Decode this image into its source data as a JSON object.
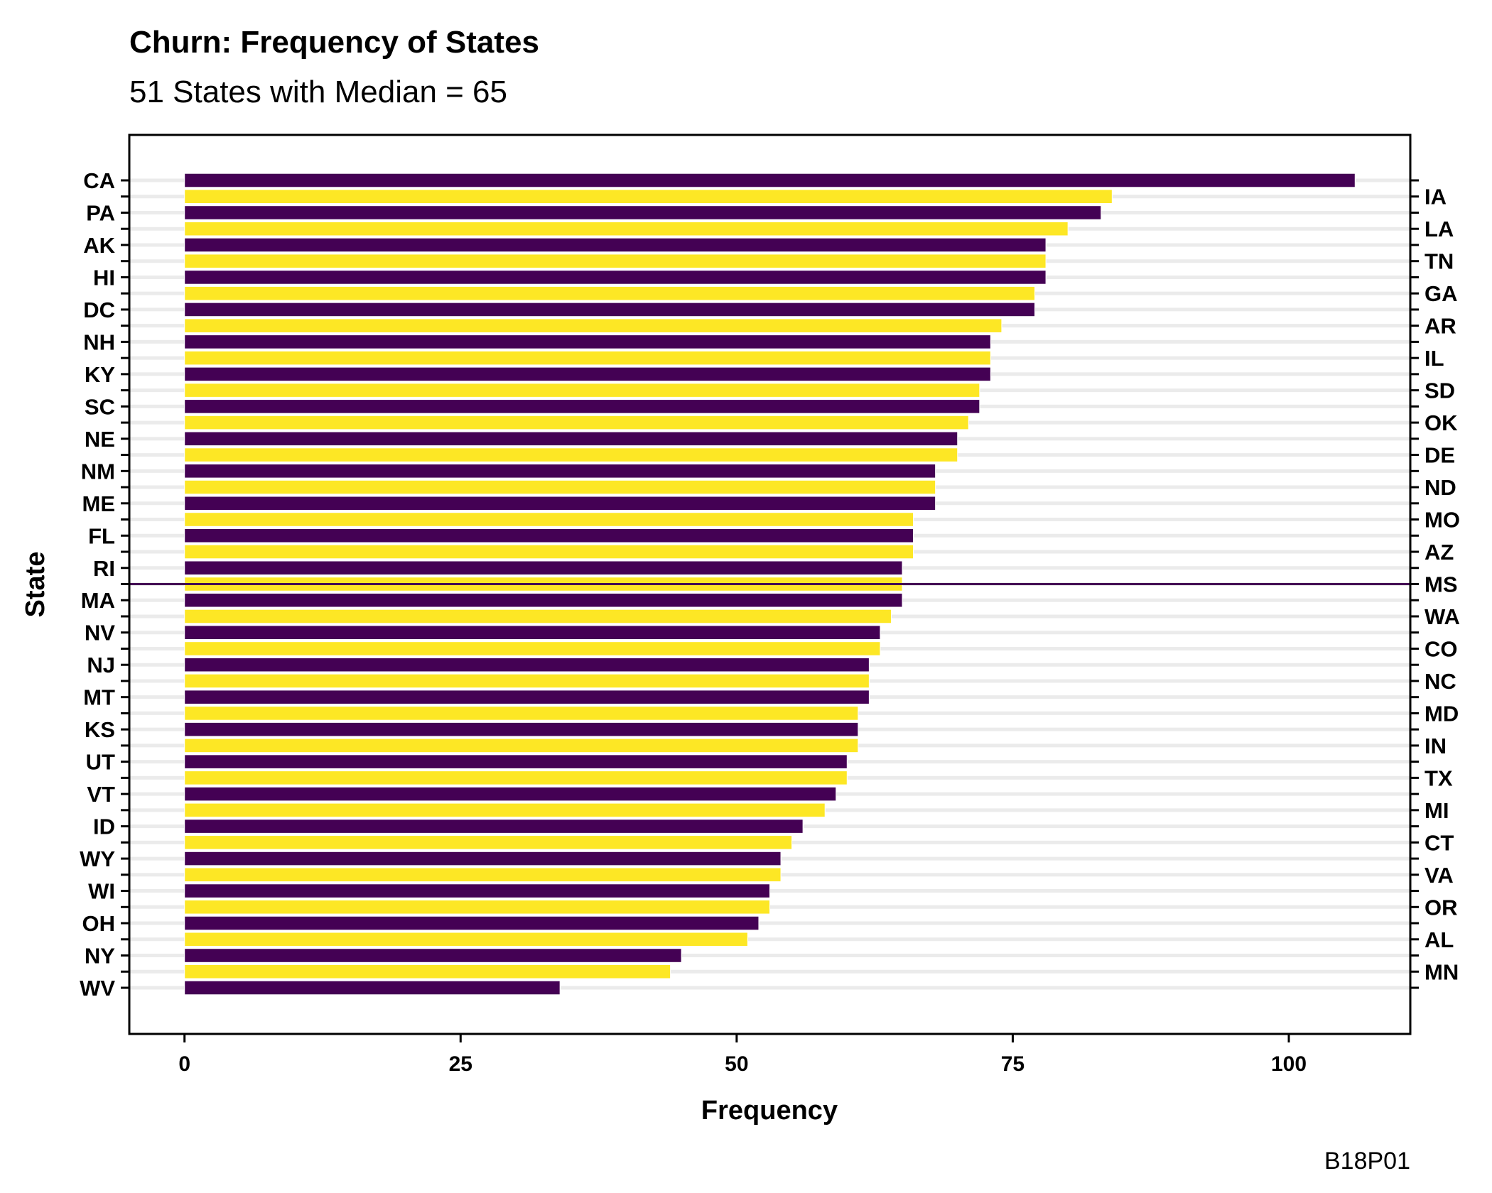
{
  "colors": {
    "odd": "#440154",
    "even": "#FDE725",
    "grid": "#EBEBEB",
    "median": "#440154"
  },
  "chart_data": {
    "type": "bar",
    "orientation": "horizontal",
    "title": "Churn: Frequency of States",
    "subtitle": "51 States with Median = 65",
    "xlabel": "Frequency",
    "ylabel": "State",
    "caption": "B18P01",
    "xlim": [
      -5,
      111
    ],
    "xticks": [
      0,
      25,
      50,
      75,
      100
    ],
    "median": 65,
    "grid": "horizontal",
    "categories": [
      "CA",
      "IA",
      "PA",
      "LA",
      "AK",
      "TN",
      "HI",
      "GA",
      "DC",
      "AR",
      "NH",
      "IL",
      "KY",
      "SD",
      "SC",
      "OK",
      "NE",
      "DE",
      "NM",
      "ND",
      "ME",
      "MO",
      "FL",
      "AZ",
      "RI",
      "MS",
      "MA",
      "WA",
      "NV",
      "CO",
      "NJ",
      "NC",
      "MT",
      "MD",
      "KS",
      "IN",
      "UT",
      "TX",
      "VT",
      "MI",
      "ID",
      "CT",
      "WY",
      "VA",
      "WI",
      "OR",
      "OH",
      "AL",
      "NY",
      "MN",
      "WV"
    ],
    "values": [
      106,
      84,
      83,
      80,
      78,
      78,
      78,
      77,
      77,
      74,
      73,
      73,
      73,
      72,
      72,
      71,
      70,
      70,
      68,
      68,
      68,
      66,
      66,
      66,
      65,
      65,
      65,
      64,
      63,
      63,
      62,
      62,
      62,
      61,
      61,
      61,
      60,
      60,
      59,
      58,
      56,
      55,
      54,
      54,
      53,
      53,
      52,
      51,
      45,
      44,
      34
    ]
  }
}
